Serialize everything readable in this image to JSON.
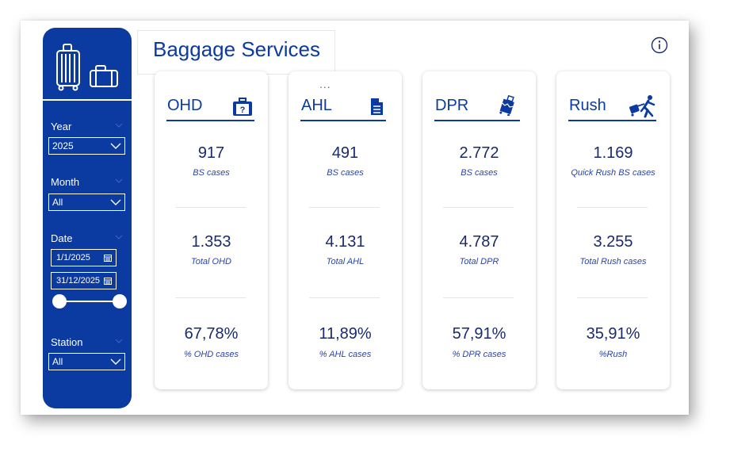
{
  "page": {
    "title": "Baggage Services"
  },
  "filters": {
    "year": {
      "label": "Year",
      "value": "2025"
    },
    "month": {
      "label": "Month",
      "value": "All"
    },
    "date": {
      "label": "Date",
      "start": "1/1/2025",
      "end": "31/12/2025"
    },
    "station": {
      "label": "Station",
      "value": "All"
    }
  },
  "cards": [
    {
      "title": "OHD",
      "icon": "suitcase-question-icon",
      "bs_value": "917",
      "bs_label": "BS cases",
      "total_value": "1.353",
      "total_label": "Total OHD",
      "pct_value": "67,78%",
      "pct_label": "% OHD cases"
    },
    {
      "title": "AHL",
      "icon": "document-icon",
      "bs_value": "491",
      "bs_label": "BS cases",
      "total_value": "4.131",
      "total_label": "Total AHL",
      "pct_value": "11,89%",
      "pct_label": "% AHL cases"
    },
    {
      "title": "DPR",
      "icon": "broken-suitcase-icon",
      "bs_value": "2.772",
      "bs_label": "BS cases",
      "total_value": "4.787",
      "total_label": "Total DPR",
      "pct_value": "57,91%",
      "pct_label": "% DPR cases"
    },
    {
      "title": "Rush",
      "icon": "person-running-luggage-icon",
      "bs_value": "1.169",
      "bs_label": "Quick Rush BS cases",
      "total_value": "3.255",
      "total_label": "Total Rush cases",
      "pct_value": "35,91%",
      "pct_label": "%Rush"
    }
  ],
  "more_options": "...",
  "colors": {
    "brand": "#0b3aa0",
    "value_text": "#1a2a6c",
    "label_text": "#2a44a8"
  }
}
